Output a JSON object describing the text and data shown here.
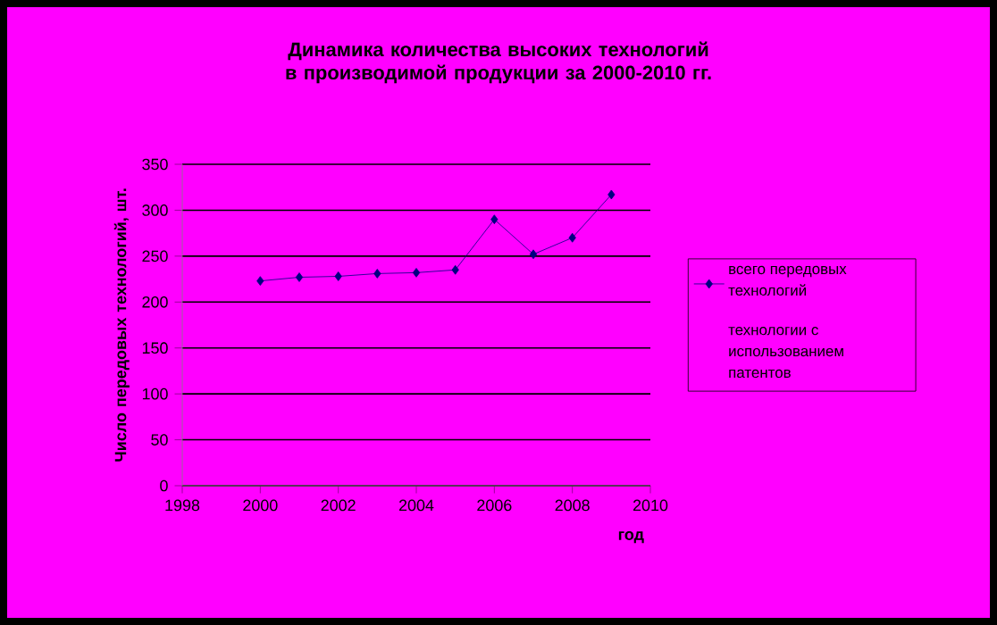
{
  "chart_data": {
    "type": "line",
    "title": "Динамика количества высоких технологий в производимой продукции за 2000-2010 гг.",
    "xlabel": "год",
    "ylabel": "Число передовых технологий, шт.",
    "x": [
      2000,
      2001,
      2002,
      2003,
      2004,
      2005,
      2006,
      2007,
      2008,
      2009
    ],
    "series": [
      {
        "name": "всего передовых технологий",
        "color": "#000080",
        "values": [
          223,
          227,
          228,
          231,
          232,
          235,
          290,
          252,
          270,
          317
        ]
      },
      {
        "name": "технологии с использованием патентов",
        "values": [
          null,
          null,
          null,
          null,
          null,
          null,
          null,
          null,
          null,
          null
        ]
      }
    ],
    "xlim": [
      1998,
      2010
    ],
    "xticks": [
      1998,
      2000,
      2002,
      2004,
      2006,
      2008,
      2010
    ],
    "ylim": [
      0,
      350
    ],
    "yticks": [
      0,
      50,
      100,
      150,
      200,
      250,
      300,
      350
    ],
    "grid": "y",
    "legend": "right",
    "marker": "diamond",
    "line_style": "solid"
  }
}
